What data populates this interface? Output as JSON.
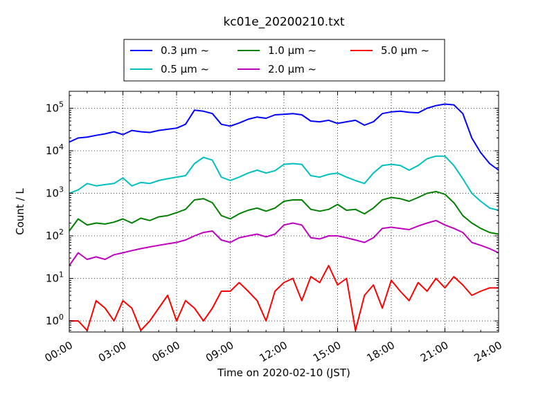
{
  "chart_data": {
    "type": "line",
    "title": "kc01e_20200210.txt",
    "xlabel": "Time on 2020-02-10 (JST)",
    "ylabel": "Count / L",
    "xlim": [
      "00:00",
      "24:00"
    ],
    "ylim": [
      0.55,
      250000
    ],
    "yscale": "log",
    "grid": true,
    "legend_position": "top-center",
    "x_tick_labels": [
      "00:00",
      "03:00",
      "06:00",
      "09:00",
      "12:00",
      "15:00",
      "18:00",
      "21:00",
      "24:00"
    ],
    "y_tick_labels": [
      {
        "base": "10",
        "exp": "0"
      },
      {
        "base": "10",
        "exp": "1"
      },
      {
        "base": "10",
        "exp": "2"
      },
      {
        "base": "10",
        "exp": "3"
      },
      {
        "base": "10",
        "exp": "4"
      },
      {
        "base": "10",
        "exp": "5"
      }
    ],
    "series": [
      {
        "name": "0.3 μm ~",
        "color": "#0000ff",
        "x": [
          0.0,
          0.5,
          1.0,
          1.5,
          2.0,
          2.5,
          3.0,
          3.5,
          4.0,
          4.5,
          5.0,
          5.5,
          6.0,
          6.5,
          7.0,
          7.5,
          8.0,
          8.5,
          9.0,
          9.5,
          10.0,
          10.5,
          11.0,
          11.5,
          12.0,
          12.5,
          13.0,
          13.5,
          14.0,
          14.5,
          15.0,
          15.5,
          16.0,
          16.5,
          17.0,
          17.5,
          18.0,
          18.5,
          19.0,
          19.5,
          20.0,
          20.5,
          21.0,
          21.5,
          22.0,
          22.5,
          23.0,
          23.5,
          24.0
        ],
        "y": [
          16000,
          20000,
          21000,
          23000,
          25000,
          28000,
          24000,
          30000,
          28000,
          27000,
          30000,
          32000,
          34000,
          42000,
          90000,
          85000,
          75000,
          42000,
          38000,
          45000,
          55000,
          62000,
          58000,
          70000,
          72000,
          75000,
          70000,
          50000,
          48000,
          52000,
          44000,
          48000,
          52000,
          40000,
          48000,
          75000,
          82000,
          85000,
          80000,
          78000,
          100000,
          115000,
          125000,
          120000,
          75000,
          20000,
          9000,
          5000,
          3500
        ]
      },
      {
        "name": "0.5 μm ~",
        "color": "#00bfbf",
        "x": [
          0.0,
          0.5,
          1.0,
          1.5,
          2.0,
          2.5,
          3.0,
          3.5,
          4.0,
          4.5,
          5.0,
          5.5,
          6.0,
          6.5,
          7.0,
          7.5,
          8.0,
          8.5,
          9.0,
          9.5,
          10.0,
          10.5,
          11.0,
          11.5,
          12.0,
          12.5,
          13.0,
          13.5,
          14.0,
          14.5,
          15.0,
          15.5,
          16.0,
          16.5,
          17.0,
          17.5,
          18.0,
          18.5,
          19.0,
          19.5,
          20.0,
          20.5,
          21.0,
          21.5,
          22.0,
          22.5,
          23.0,
          23.5,
          24.0
        ],
        "y": [
          1000,
          1200,
          1700,
          1500,
          1600,
          1700,
          2300,
          1500,
          1800,
          1700,
          2000,
          2200,
          2400,
          2600,
          5000,
          7000,
          6000,
          2400,
          2000,
          2400,
          3000,
          3500,
          3000,
          3400,
          4800,
          5000,
          4800,
          2600,
          2400,
          2800,
          3000,
          2400,
          2000,
          1700,
          3000,
          4500,
          4800,
          4500,
          3500,
          4500,
          6500,
          7500,
          7500,
          4500,
          2200,
          1000,
          650,
          450,
          400
        ]
      },
      {
        "name": "1.0 μm ~",
        "color": "#008000",
        "x": [
          0.0,
          0.5,
          1.0,
          1.5,
          2.0,
          2.5,
          3.0,
          3.5,
          4.0,
          4.5,
          5.0,
          5.5,
          6.0,
          6.5,
          7.0,
          7.5,
          8.0,
          8.5,
          9.0,
          9.5,
          10.0,
          10.5,
          11.0,
          11.5,
          12.0,
          12.5,
          13.0,
          13.5,
          14.0,
          14.5,
          15.0,
          15.5,
          16.0,
          16.5,
          17.0,
          17.5,
          18.0,
          18.5,
          19.0,
          19.5,
          20.0,
          20.5,
          21.0,
          21.5,
          22.0,
          22.5,
          23.0,
          23.5,
          24.0
        ],
        "y": [
          130,
          250,
          180,
          200,
          190,
          210,
          250,
          200,
          260,
          230,
          280,
          300,
          350,
          420,
          700,
          750,
          600,
          300,
          250,
          330,
          400,
          450,
          380,
          450,
          650,
          700,
          700,
          420,
          380,
          420,
          550,
          400,
          420,
          330,
          450,
          700,
          800,
          750,
          650,
          800,
          1000,
          1100,
          950,
          600,
          300,
          200,
          150,
          120,
          110
        ]
      },
      {
        "name": "2.0 μm ~",
        "color": "#bf00bf",
        "x": [
          0.0,
          0.5,
          1.0,
          1.5,
          2.0,
          2.5,
          3.0,
          3.5,
          4.0,
          4.5,
          5.0,
          5.5,
          6.0,
          6.5,
          7.0,
          7.5,
          8.0,
          8.5,
          9.0,
          9.5,
          10.0,
          10.5,
          11.0,
          11.5,
          12.0,
          12.5,
          13.0,
          13.5,
          14.0,
          14.5,
          15.0,
          15.5,
          16.0,
          16.5,
          17.0,
          17.5,
          18.0,
          18.5,
          19.0,
          19.5,
          20.0,
          20.5,
          21.0,
          21.5,
          22.0,
          22.5,
          23.0,
          23.5,
          24.0
        ],
        "y": [
          20,
          40,
          28,
          32,
          28,
          36,
          40,
          45,
          50,
          55,
          60,
          65,
          70,
          80,
          100,
          120,
          130,
          80,
          70,
          90,
          100,
          110,
          95,
          110,
          180,
          200,
          180,
          90,
          85,
          100,
          100,
          90,
          80,
          70,
          90,
          150,
          160,
          150,
          140,
          170,
          200,
          230,
          180,
          150,
          120,
          70,
          60,
          50,
          40
        ]
      },
      {
        "name": "5.0 μm ~",
        "color": "#ff0000",
        "x": [
          0.0,
          0.5,
          1.0,
          1.5,
          2.0,
          2.5,
          3.0,
          3.5,
          4.0,
          4.5,
          5.0,
          5.5,
          6.0,
          6.5,
          7.0,
          7.5,
          8.0,
          8.5,
          9.0,
          9.5,
          10.0,
          10.5,
          11.0,
          11.5,
          12.0,
          12.5,
          13.0,
          13.5,
          14.0,
          14.5,
          15.0,
          15.5,
          16.0,
          16.5,
          17.0,
          17.5,
          18.0,
          18.5,
          19.0,
          19.5,
          20.0,
          20.5,
          21.0,
          21.5,
          22.0,
          22.5,
          23.0,
          23.5,
          24.0
        ],
        "y": [
          1,
          1,
          0.6,
          3,
          2,
          1,
          3,
          2,
          0.6,
          1,
          2,
          4,
          1,
          3,
          2,
          1,
          2,
          5,
          5,
          8,
          5,
          3,
          1,
          5,
          8,
          10,
          3,
          11,
          8,
          20,
          7,
          10,
          0.6,
          4,
          7,
          2,
          9,
          5,
          3,
          8,
          5,
          10,
          6,
          11,
          7,
          4,
          5,
          6,
          6
        ]
      }
    ]
  }
}
